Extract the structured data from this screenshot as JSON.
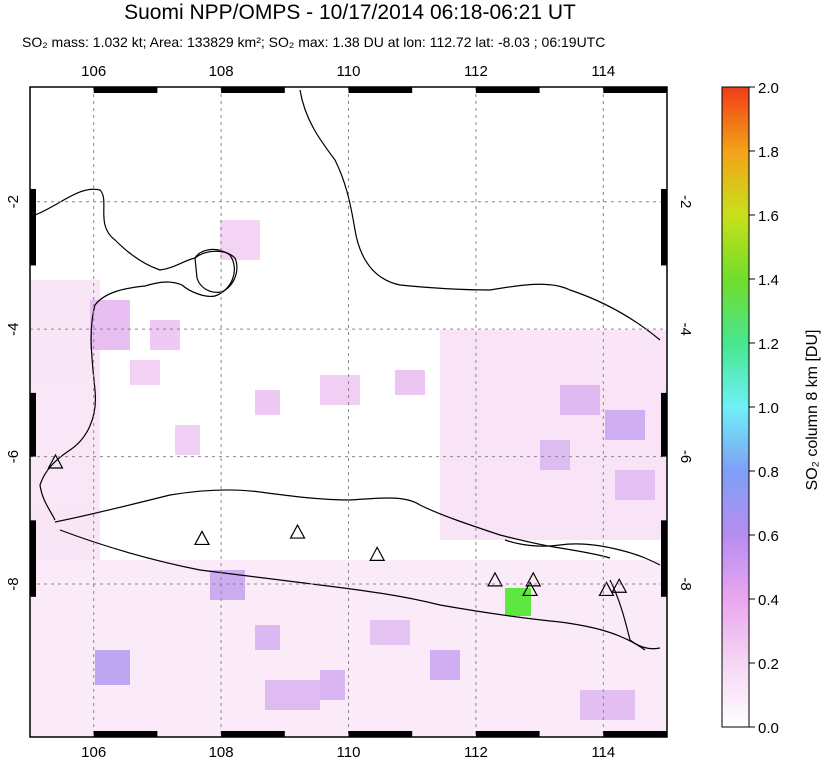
{
  "header": {
    "title": "Suomi NPP/OMPS - 10/17/2014 06:18-06:21 UT",
    "subtitle": "SO₂ mass: 1.032 kt; Area: 133829 km²; SO₂ max: 1.38 DU at lon: 112.72 lat: -8.03 ; 06:19UTC"
  },
  "map": {
    "lon_ticks": [
      "106",
      "108",
      "110",
      "112",
      "114"
    ],
    "lat_ticks": [
      "-2",
      "-4",
      "-6",
      "-8"
    ],
    "lon_range": [
      105,
      115
    ],
    "lat_range": [
      -0.2,
      -10.4
    ],
    "grid": true
  },
  "colorbar": {
    "label": "SO₂ column 8 km [DU]",
    "ticks": [
      "0.0",
      "0.2",
      "0.4",
      "0.6",
      "0.8",
      "1.0",
      "1.2",
      "1.4",
      "1.6",
      "1.8",
      "2.0"
    ],
    "range": [
      0,
      2
    ],
    "colors": [
      "#ffffff",
      "#f6d6f3",
      "#e9a6ef",
      "#b78cf0",
      "#7f9ff6",
      "#6ff0f6",
      "#48e68f",
      "#72dd2a",
      "#c8e01a",
      "#f4a21a",
      "#f03c18"
    ]
  },
  "volcanoes": [
    {
      "lon": 105.4,
      "lat": -6.1
    },
    {
      "lon": 107.7,
      "lat": -7.3
    },
    {
      "lon": 109.2,
      "lat": -7.2
    },
    {
      "lon": 110.45,
      "lat": -7.55
    },
    {
      "lon": 112.3,
      "lat": -7.95
    },
    {
      "lon": 112.9,
      "lat": -7.95
    },
    {
      "lon": 112.85,
      "lat": -8.1
    },
    {
      "lon": 114.05,
      "lat": -8.1
    },
    {
      "lon": 114.25,
      "lat": -8.05
    }
  ]
}
